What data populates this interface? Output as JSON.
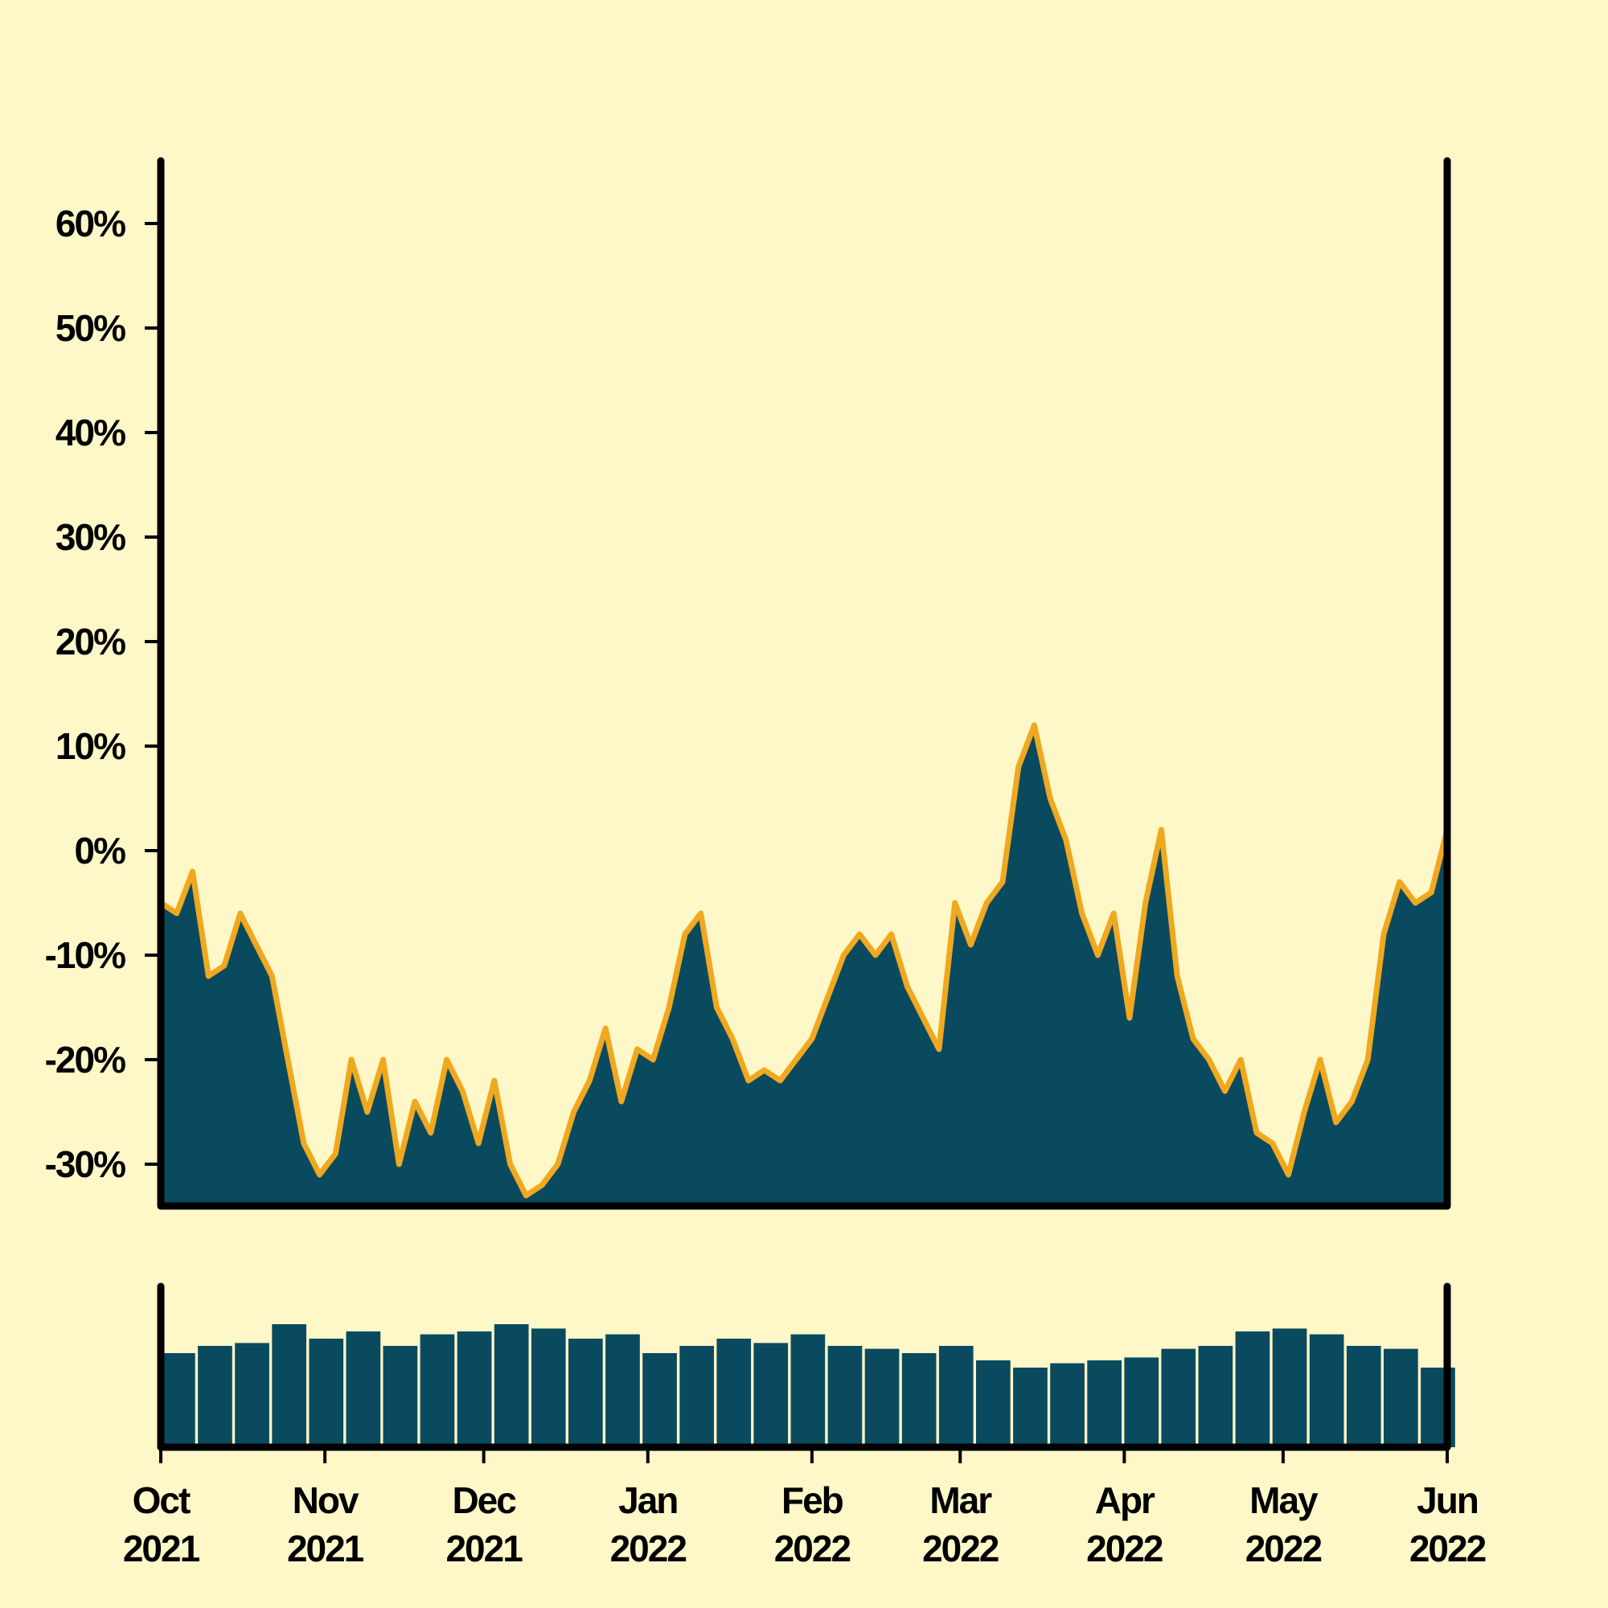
{
  "colors": {
    "background": "#fef7c8",
    "fill": "#0a4a5f",
    "line": "#f0a81f",
    "axis": "#000000"
  },
  "chart_data": [
    {
      "type": "area",
      "title": "",
      "xlabel": "",
      "ylabel": "",
      "x_range": [
        "2021-10-01",
        "2022-06-01"
      ],
      "ylim": [
        -34,
        66
      ],
      "y_ticks": [
        {
          "value": 60,
          "label": "60%"
        },
        {
          "value": 50,
          "label": "50%"
        },
        {
          "value": 40,
          "label": "40%"
        },
        {
          "value": 30,
          "label": "30%"
        },
        {
          "value": 20,
          "label": "20%"
        },
        {
          "value": 10,
          "label": "10%"
        },
        {
          "value": 0,
          "label": "0%"
        },
        {
          "value": -10,
          "label": "-10%"
        },
        {
          "value": -20,
          "label": "-20%"
        },
        {
          "value": -30,
          "label": "-30%"
        }
      ],
      "x": [
        "2021-10-01",
        "2021-10-04",
        "2021-10-07",
        "2021-10-10",
        "2021-10-13",
        "2021-10-16",
        "2021-10-19",
        "2021-10-22",
        "2021-10-25",
        "2021-10-28",
        "2021-10-31",
        "2021-11-03",
        "2021-11-06",
        "2021-11-09",
        "2021-11-12",
        "2021-11-15",
        "2021-11-18",
        "2021-11-21",
        "2021-11-24",
        "2021-11-27",
        "2021-11-30",
        "2021-12-03",
        "2021-12-06",
        "2021-12-09",
        "2021-12-12",
        "2021-12-15",
        "2021-12-18",
        "2021-12-21",
        "2021-12-24",
        "2021-12-27",
        "2021-12-30",
        "2022-01-02",
        "2022-01-05",
        "2022-01-08",
        "2022-01-11",
        "2022-01-14",
        "2022-01-17",
        "2022-01-20",
        "2022-01-23",
        "2022-01-26",
        "2022-01-29",
        "2022-02-01",
        "2022-02-04",
        "2022-02-07",
        "2022-02-10",
        "2022-02-13",
        "2022-02-16",
        "2022-02-19",
        "2022-02-22",
        "2022-02-25",
        "2022-02-28",
        "2022-03-03",
        "2022-03-06",
        "2022-03-09",
        "2022-03-12",
        "2022-03-15",
        "2022-03-18",
        "2022-03-21",
        "2022-03-24",
        "2022-03-27",
        "2022-03-30",
        "2022-04-02",
        "2022-04-05",
        "2022-04-08",
        "2022-04-11",
        "2022-04-14",
        "2022-04-17",
        "2022-04-20",
        "2022-04-23",
        "2022-04-26",
        "2022-04-29",
        "2022-05-02",
        "2022-05-05",
        "2022-05-08",
        "2022-05-11",
        "2022-05-14",
        "2022-05-17",
        "2022-05-20",
        "2022-05-23",
        "2022-05-26",
        "2022-05-29",
        "2022-06-01"
      ],
      "values": [
        -5,
        -6,
        -2,
        -12,
        -11,
        -6,
        -9,
        -12,
        -20,
        -28,
        -31,
        -29,
        -20,
        -25,
        -20,
        -30,
        -24,
        -27,
        -20,
        -23,
        -28,
        -22,
        -30,
        -33,
        -32,
        -30,
        -25,
        -22,
        -17,
        -24,
        -19,
        -20,
        -15,
        -8,
        -6,
        -15,
        -18,
        -22,
        -21,
        -22,
        -20,
        -18,
        -14,
        -10,
        -8,
        -10,
        -8,
        -13,
        -16,
        -19,
        -5,
        -9,
        -5,
        -3,
        8,
        12,
        5,
        1,
        -6,
        -10,
        -6,
        -16,
        -5,
        2,
        -12,
        -18,
        -20,
        -23,
        -20,
        -27,
        -28,
        -31,
        -25,
        -20,
        -26,
        -24,
        -20,
        -8,
        -3,
        -5,
        -4,
        2
      ],
      "x_ticks": [
        {
          "date": "2021-10-01",
          "month": "Oct",
          "year": "2021"
        },
        {
          "date": "2021-11-01",
          "month": "Nov",
          "year": "2021"
        },
        {
          "date": "2021-12-01",
          "month": "Dec",
          "year": "2021"
        },
        {
          "date": "2022-01-01",
          "month": "Jan",
          "year": "2022"
        },
        {
          "date": "2022-02-01",
          "month": "Feb",
          "year": "2022"
        },
        {
          "date": "2022-03-01",
          "month": "Mar",
          "year": "2022"
        },
        {
          "date": "2022-04-01",
          "month": "Apr",
          "year": "2022"
        },
        {
          "date": "2022-05-01",
          "month": "May",
          "year": "2022"
        },
        {
          "date": "2022-06-01",
          "month": "Jun",
          "year": "2022"
        }
      ]
    },
    {
      "type": "bar",
      "title": "",
      "xlabel": "",
      "ylabel": "",
      "x_range": [
        "2021-10-01",
        "2022-06-01"
      ],
      "ylim": [
        0,
        1
      ],
      "x": [
        "2021-10-01",
        "2021-10-08",
        "2021-10-15",
        "2021-10-22",
        "2021-10-29",
        "2021-11-05",
        "2021-11-12",
        "2021-11-19",
        "2021-11-26",
        "2021-12-03",
        "2021-12-10",
        "2021-12-17",
        "2021-12-24",
        "2021-12-31",
        "2022-01-07",
        "2022-01-14",
        "2022-01-21",
        "2022-01-28",
        "2022-02-04",
        "2022-02-11",
        "2022-02-18",
        "2022-02-25",
        "2022-03-04",
        "2022-03-11",
        "2022-03-18",
        "2022-03-25",
        "2022-04-01",
        "2022-04-08",
        "2022-04-15",
        "2022-04-22",
        "2022-04-29",
        "2022-05-06",
        "2022-05-13",
        "2022-05-20",
        "2022-05-27"
      ],
      "values": [
        0.65,
        0.7,
        0.72,
        0.85,
        0.75,
        0.8,
        0.7,
        0.78,
        0.8,
        0.85,
        0.82,
        0.75,
        0.78,
        0.65,
        0.7,
        0.75,
        0.72,
        0.78,
        0.7,
        0.68,
        0.65,
        0.7,
        0.6,
        0.55,
        0.58,
        0.6,
        0.62,
        0.68,
        0.7,
        0.8,
        0.82,
        0.78,
        0.7,
        0.68,
        0.55
      ],
      "x_ticks": [
        "2021-10-01",
        "2021-11-01",
        "2021-12-01",
        "2022-01-01",
        "2022-02-01",
        "2022-03-01",
        "2022-04-01",
        "2022-05-01",
        "2022-06-01"
      ]
    }
  ]
}
